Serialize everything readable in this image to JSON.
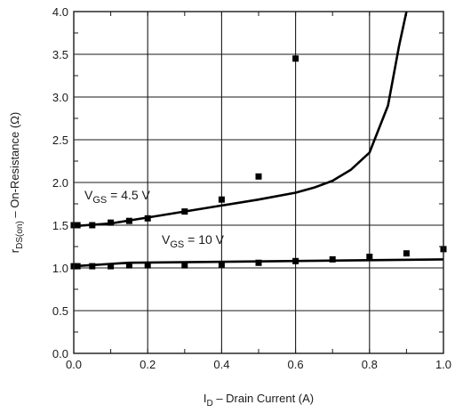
{
  "chart_data": {
    "type": "line",
    "title": "",
    "xlabel": {
      "main": "I",
      "sub": "D",
      "rest": " – Drain Current (A)"
    },
    "ylabel": {
      "main": "r",
      "sub": "DS(on)",
      "rest": " – On-Resistance (Ω)"
    },
    "xlim": [
      0.0,
      1.0
    ],
    "ylim": [
      0.0,
      4.0
    ],
    "x_ticks": [
      0.0,
      0.2,
      0.4,
      0.6,
      0.8,
      1.0
    ],
    "x_tick_labels": [
      "0.0",
      "0.2",
      "0.4",
      "0.6",
      "0.8",
      "1.0"
    ],
    "y_ticks": [
      0.0,
      0.5,
      1.0,
      1.5,
      2.0,
      2.5,
      3.0,
      3.5,
      4.0
    ],
    "y_tick_labels": [
      "0.0",
      "0.5",
      "1.0",
      "1.5",
      "2.0",
      "2.5",
      "3.0",
      "3.5",
      "4.0"
    ],
    "grid": true,
    "series": [
      {
        "label": {
          "main": "V",
          "sub": "GS",
          "rest": " = 4.5 V"
        },
        "color": "#000000",
        "curve": {
          "x": [
            0.0,
            0.1,
            0.2,
            0.3,
            0.4,
            0.5,
            0.6,
            0.65,
            0.7,
            0.75,
            0.8,
            0.85,
            0.88,
            0.9
          ],
          "y": [
            1.49,
            1.52,
            1.59,
            1.66,
            1.73,
            1.8,
            1.88,
            1.94,
            2.02,
            2.15,
            2.35,
            2.9,
            3.6,
            4.0
          ]
        },
        "markers": {
          "x": [
            0.0,
            0.01,
            0.05,
            0.1,
            0.15,
            0.2,
            0.3,
            0.4,
            0.5,
            0.6
          ],
          "y": [
            1.5,
            1.5,
            1.5,
            1.53,
            1.55,
            1.58,
            1.66,
            1.8,
            2.07,
            3.45
          ]
        }
      },
      {
        "label": {
          "main": "V",
          "sub": "GS",
          "rest": " = 10 V"
        },
        "color": "#000000",
        "curve": {
          "x": [
            0.0,
            0.15,
            1.0
          ],
          "y": [
            1.02,
            1.06,
            1.1
          ]
        },
        "markers": {
          "x": [
            0.0,
            0.01,
            0.05,
            0.1,
            0.15,
            0.2,
            0.3,
            0.4,
            0.5,
            0.6,
            0.7,
            0.8,
            0.9,
            1.0
          ],
          "y": [
            1.02,
            1.02,
            1.02,
            1.02,
            1.03,
            1.03,
            1.03,
            1.04,
            1.06,
            1.08,
            1.1,
            1.13,
            1.17,
            1.22
          ]
        }
      }
    ]
  }
}
